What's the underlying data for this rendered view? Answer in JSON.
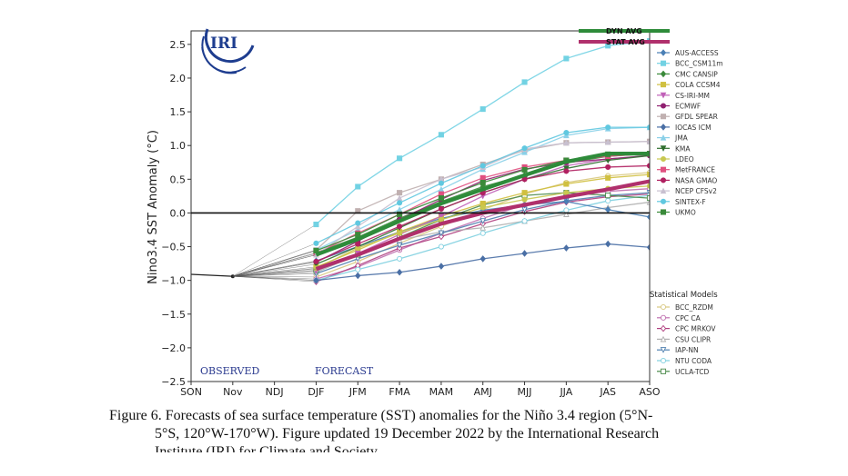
{
  "chart_data": {
    "type": "line",
    "ylabel": "Nino3.4 SST Anomaly (°C)",
    "ylim": [
      -2.5,
      2.7
    ],
    "yticks": [
      "2.5",
      "2.0",
      "1.5",
      "1.0",
      "0.5",
      "0.0",
      "−0.5",
      "−1.0",
      "−1.5",
      "−2.0",
      "−2.5"
    ],
    "ytick_values": [
      2.5,
      2.0,
      1.5,
      1.0,
      0.5,
      0.0,
      -0.5,
      -1.0,
      -1.5,
      -2.0,
      -2.5
    ],
    "categories": [
      "SON",
      "Nov",
      "NDJ",
      "DJF",
      "JFM",
      "FMA",
      "MAM",
      "AMJ",
      "MJJ",
      "JJA",
      "JAS",
      "ASO"
    ],
    "observed": {
      "x": [
        "SON",
        "Nov"
      ],
      "values": [
        -0.91,
        -0.94
      ]
    },
    "observed_label": "OBSERVED",
    "forecast_label": "FORECAST",
    "dynamical_models": [
      {
        "name": "DYN AVG",
        "color": "#2e8b3a",
        "marker": "none",
        "values": [
          -0.62,
          -0.39,
          -0.12,
          0.14,
          0.35,
          0.56,
          0.76,
          0.88,
          0.88
        ]
      },
      {
        "name": "STAT AVG",
        "color": "#b0306c",
        "marker": "none",
        "values": [
          -0.83,
          -0.62,
          -0.38,
          -0.16,
          0.0,
          0.12,
          0.24,
          0.35,
          0.47
        ]
      },
      {
        "name": "AUS-ACCESS",
        "color": "#4a7fb5",
        "marker": "diamond",
        "values": [
          -0.71,
          -0.5,
          -0.28,
          -0.08,
          0.04,
          0.12,
          0.17,
          0.05,
          -0.06
        ]
      },
      {
        "name": "BCC_CSM11m",
        "color": "#72d2e3",
        "marker": "square",
        "values": [
          -0.17,
          0.39,
          0.81,
          1.16,
          1.54,
          1.94,
          2.29,
          2.48,
          2.55
        ]
      },
      {
        "name": "CMC CANSIP",
        "color": "#3a8a3a",
        "marker": "diamond",
        "values": [
          -0.59,
          -0.36,
          -0.08,
          0.17,
          0.39,
          0.56,
          0.74,
          0.84,
          0.88
        ]
      },
      {
        "name": "COLA CCSM4",
        "color": "#d0c040",
        "marker": "square",
        "values": [
          -0.8,
          -0.55,
          -0.28,
          -0.05,
          0.14,
          0.3,
          0.43,
          0.52,
          0.57
        ]
      },
      {
        "name": "CS-IRI-MM",
        "color": "#c060b8",
        "marker": "triangle-down",
        "values": [
          -0.86,
          -0.6,
          -0.32,
          -0.05,
          0.25,
          0.5,
          0.7,
          0.8,
          0.85
        ]
      },
      {
        "name": "ECMWF",
        "color": "#902070",
        "marker": "circle",
        "values": [
          -0.73,
          -0.42,
          -0.1,
          0.2,
          0.48,
          0.65,
          0.75,
          0.8,
          0.85
        ]
      },
      {
        "name": "GFDL SPEAR",
        "color": "#c0b0b0",
        "marker": "square",
        "values": [
          -0.55,
          0.03,
          0.3,
          0.5,
          0.72,
          0.93,
          1.04,
          1.05,
          1.06
        ]
      },
      {
        "name": "IOCAS ICM",
        "color": "#4a6fa5",
        "marker": "diamond",
        "values": [
          -1.0,
          -0.93,
          -0.88,
          -0.79,
          -0.68,
          -0.6,
          -0.52,
          -0.46,
          -0.51
        ]
      },
      {
        "name": "JMA",
        "color": "#8ad0e8",
        "marker": "triangle",
        "values": [
          -0.55,
          -0.25,
          0.05,
          0.35,
          0.65,
          0.9,
          1.15,
          1.25,
          1.27
        ]
      },
      {
        "name": "KMA",
        "color": "#2f6f2f",
        "marker": "triangle-down",
        "values": [
          -0.76,
          -0.5,
          -0.22,
          0.06,
          0.3,
          0.5,
          0.66,
          0.78,
          0.85
        ]
      },
      {
        "name": "LDEO",
        "color": "#c8c850",
        "marker": "circle",
        "values": [
          -0.82,
          -0.52,
          -0.3,
          -0.1,
          0.08,
          0.2,
          0.3,
          0.36,
          0.4
        ]
      },
      {
        "name": "MetFRANCE",
        "color": "#e05080",
        "marker": "square",
        "values": [
          -0.6,
          -0.3,
          -0.02,
          0.28,
          0.52,
          0.68,
          0.78,
          0.84,
          0.88
        ]
      },
      {
        "name": "NASA GMAO",
        "color": "#b02060",
        "marker": "circle",
        "values": [
          -0.72,
          -0.46,
          -0.2,
          0.06,
          0.3,
          0.5,
          0.62,
          0.68,
          0.7
        ]
      },
      {
        "name": "NCEP CFSv2",
        "color": "#c8c0d0",
        "marker": "triangle",
        "values": [
          -0.62,
          -0.2,
          0.22,
          0.5,
          0.68,
          0.95,
          1.04,
          1.05,
          1.06
        ]
      },
      {
        "name": "SINTEX-F",
        "color": "#60c8e0",
        "marker": "circle",
        "values": [
          -0.45,
          -0.15,
          0.15,
          0.44,
          0.7,
          0.96,
          1.19,
          1.27,
          1.27
        ]
      },
      {
        "name": "UKMO",
        "color": "#3a8a3a",
        "marker": "square",
        "values": [
          -0.56,
          -0.32,
          -0.02,
          0.22,
          0.45,
          0.64,
          0.78,
          0.87,
          0.88
        ]
      }
    ],
    "statistical_header": "Statistical Models",
    "statistical_models": [
      {
        "name": "BCC_RZDM",
        "color": "#d8c880",
        "marker": "circle-open",
        "values": [
          -0.95,
          -0.72,
          -0.45,
          -0.2,
          0.05,
          0.28,
          0.45,
          0.55,
          0.6
        ]
      },
      {
        "name": "CPC CA",
        "color": "#c070b0",
        "marker": "circle-open",
        "values": [
          -0.98,
          -0.8,
          -0.55,
          -0.3,
          -0.08,
          0.12,
          0.25,
          0.32,
          0.36
        ]
      },
      {
        "name": "CPC MRKOV",
        "color": "#b04080",
        "marker": "diamond-open",
        "values": [
          -1.02,
          -0.78,
          -0.52,
          -0.35,
          -0.16,
          0.02,
          0.16,
          0.24,
          0.28
        ]
      },
      {
        "name": "CSU CLIPR",
        "color": "#b0b0b0",
        "marker": "triangle-open",
        "values": [
          -0.88,
          -0.62,
          -0.4,
          -0.28,
          -0.22,
          -0.12,
          -0.02,
          0.08,
          0.16
        ]
      },
      {
        "name": "IAP-NN",
        "color": "#5080b0",
        "marker": "triangle-down-open",
        "values": [
          -0.9,
          -0.68,
          -0.48,
          -0.3,
          -0.12,
          0.05,
          0.18,
          0.26,
          0.3
        ]
      },
      {
        "name": "NTU CODA",
        "color": "#80d0e0",
        "marker": "circle-open",
        "values": [
          -1.0,
          -0.84,
          -0.68,
          -0.5,
          -0.3,
          -0.12,
          0.04,
          0.18,
          0.26
        ]
      },
      {
        "name": "UCLA-TCD",
        "color": "#4a8a4a",
        "marker": "square-open",
        "values": [
          -0.85,
          -0.62,
          -0.36,
          -0.1,
          0.12,
          0.26,
          0.3,
          0.26,
          0.22
        ]
      }
    ]
  },
  "logo": {
    "text": "IRI",
    "color": "#1e3d8f"
  },
  "caption": {
    "line1": "Figure 6. Forecasts of sea surface temperature (SST) anomalies for the Niño 3.4 region (5°N-",
    "line2": "5°S, 120°W-170°W). Figure updated 19 December 2022 by the International Research",
    "line3": "Institute (IRI) for Climate and Society"
  }
}
